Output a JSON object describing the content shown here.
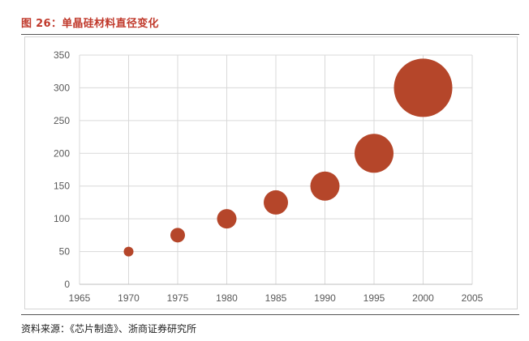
{
  "figure": {
    "title": "图 26：单晶硅材料直径变化",
    "source": "资料来源：《芯片制造》、浙商证券研究所"
  },
  "chart_data": {
    "type": "scatter",
    "title": "",
    "xlabel": "",
    "ylabel": "",
    "xlim": [
      1965,
      2005
    ],
    "ylim": [
      0,
      350
    ],
    "xticks": [
      1965,
      1970,
      1975,
      1980,
      1985,
      1990,
      1995,
      2000,
      2005
    ],
    "yticks": [
      0,
      50,
      100,
      150,
      200,
      250,
      300,
      350
    ],
    "x": [
      1970,
      1975,
      1980,
      1985,
      1990,
      1995,
      2000
    ],
    "y": [
      50,
      75,
      100,
      125,
      150,
      200,
      300
    ],
    "grid": true,
    "legend": "none",
    "marker": "bubble",
    "color": "#b5462a"
  }
}
